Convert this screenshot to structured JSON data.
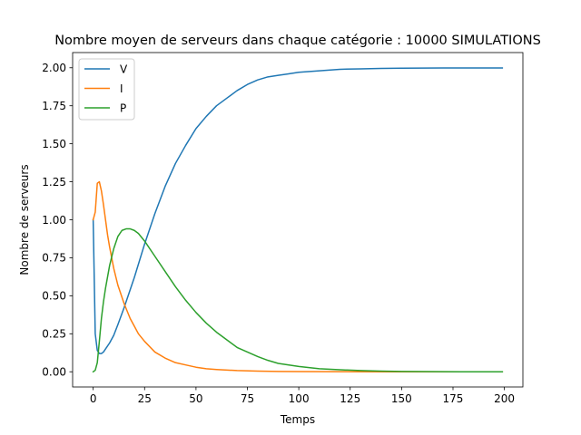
{
  "chart_data": {
    "type": "line",
    "title": "Nombre moyen de serveurs dans chaque catégorie : 10000 SIMULATIONS",
    "xlabel": "Temps",
    "ylabel": "Nombre de serveurs",
    "xlim": [
      -10,
      209
    ],
    "ylim": [
      -0.1,
      2.1
    ],
    "xticks": [
      0,
      25,
      50,
      75,
      100,
      125,
      150,
      175,
      200
    ],
    "xtick_labels": [
      "0",
      "25",
      "50",
      "75",
      "100",
      "125",
      "150",
      "175",
      "200"
    ],
    "yticks": [
      0.0,
      0.25,
      0.5,
      0.75,
      1.0,
      1.25,
      1.5,
      1.75,
      2.0
    ],
    "ytick_labels": [
      "0.00",
      "0.25",
      "0.50",
      "0.75",
      "1.00",
      "1.25",
      "1.50",
      "1.75",
      "2.00"
    ],
    "grid": false,
    "legend_position": "upper-left",
    "series": [
      {
        "name": "V",
        "color": "#1f77b4",
        "x": [
          0,
          1,
          2,
          3,
          4,
          5,
          6,
          8,
          10,
          12,
          15,
          18,
          20,
          25,
          30,
          35,
          40,
          45,
          50,
          55,
          60,
          65,
          70,
          75,
          80,
          85,
          90,
          95,
          100,
          110,
          120,
          130,
          140,
          150,
          160,
          170,
          180,
          190,
          199
        ],
        "y": [
          1.0,
          0.25,
          0.14,
          0.12,
          0.12,
          0.13,
          0.15,
          0.19,
          0.24,
          0.31,
          0.42,
          0.54,
          0.62,
          0.84,
          1.04,
          1.22,
          1.37,
          1.49,
          1.6,
          1.68,
          1.75,
          1.8,
          1.85,
          1.89,
          1.92,
          1.94,
          1.95,
          1.96,
          1.97,
          1.98,
          1.99,
          1.993,
          1.996,
          1.997,
          1.998,
          1.999,
          1.999,
          1.999,
          1.999
        ]
      },
      {
        "name": "I",
        "color": "#ff7f0e",
        "x": [
          0,
          1,
          2,
          3,
          4,
          5,
          6,
          7,
          8,
          10,
          12,
          15,
          18,
          20,
          22,
          25,
          30,
          35,
          40,
          45,
          50,
          55,
          60,
          70,
          80,
          90,
          100,
          120,
          140,
          160,
          180,
          199
        ],
        "y": [
          1.0,
          1.05,
          1.24,
          1.25,
          1.19,
          1.1,
          1.0,
          0.9,
          0.82,
          0.68,
          0.57,
          0.45,
          0.35,
          0.3,
          0.25,
          0.2,
          0.13,
          0.09,
          0.06,
          0.045,
          0.03,
          0.02,
          0.015,
          0.008,
          0.004,
          0.002,
          0.001,
          0.0005,
          0.0,
          0.0,
          0.0,
          0.0
        ]
      },
      {
        "name": "P",
        "color": "#2ca02c",
        "x": [
          0,
          1,
          2,
          3,
          4,
          5,
          6,
          8,
          10,
          12,
          14,
          16,
          18,
          20,
          22,
          25,
          30,
          35,
          40,
          45,
          50,
          55,
          60,
          65,
          70,
          75,
          80,
          85,
          90,
          100,
          110,
          120,
          130,
          140,
          150,
          160,
          180,
          199
        ],
        "y": [
          0.0,
          0.01,
          0.06,
          0.2,
          0.35,
          0.46,
          0.55,
          0.7,
          0.81,
          0.89,
          0.93,
          0.94,
          0.94,
          0.93,
          0.91,
          0.86,
          0.76,
          0.66,
          0.56,
          0.47,
          0.39,
          0.32,
          0.26,
          0.21,
          0.16,
          0.13,
          0.1,
          0.075,
          0.055,
          0.035,
          0.02,
          0.013,
          0.008,
          0.004,
          0.002,
          0.001,
          0.0,
          0.0
        ]
      }
    ]
  }
}
